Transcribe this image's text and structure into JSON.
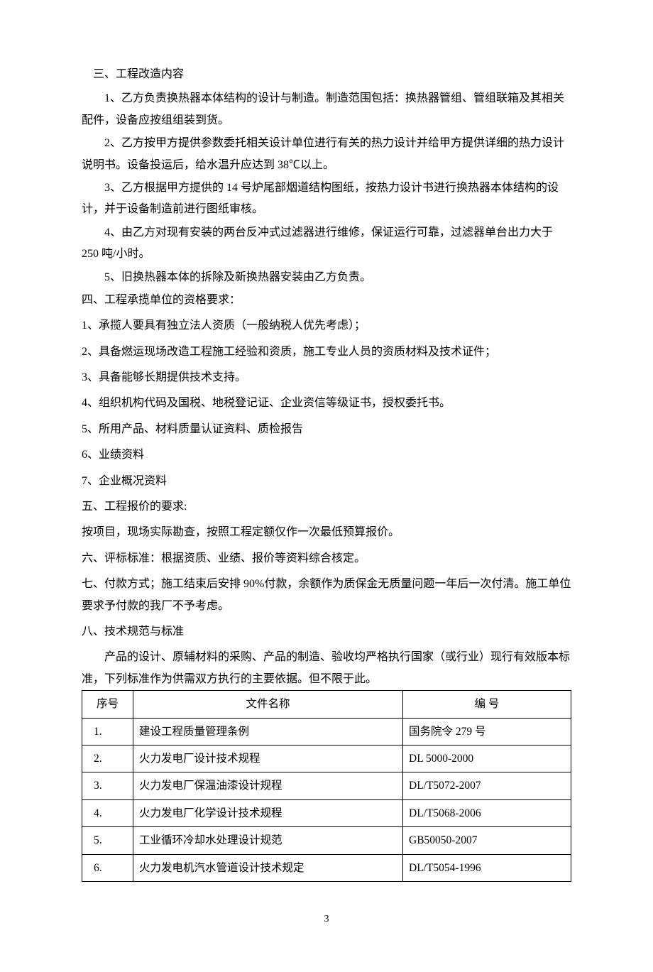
{
  "section3": {
    "heading": "三、工程改造内容",
    "items": [
      "1、乙方负责换热器本体结构的设计与制造。制造范围包括：换热器管组、管组联箱及其相关配件，设备应按组组装到货。",
      "2、乙方按甲方提供参数委托相关设计单位进行有关的热力设计并给甲方提供详细的热力设计说明书。设备投运后，给水温升应达到 38℃以上。",
      "3、乙方根据甲方提供的 14 号炉尾部烟道结构图纸，按热力设计书进行换热器本体结构的设计，并于设备制造前进行图纸审核。",
      "4、由乙方对现有安装的两台反冲式过滤器进行维修，保证运行可靠，过滤器单台出力大于 250 吨/小时。",
      "5、旧换热器本体的拆除及新换热器安装由乙方负责。"
    ]
  },
  "section4": {
    "heading": "四、工程承揽单位的资格要求：",
    "items": [
      "1、承揽人要具有独立法人资质（一般纳税人优先考虑）；",
      "2、具备燃运现场改造工程施工经验和资质，施工专业人员的资质材料及技术证件；",
      "3、具备能够长期提供技术支持。",
      "4、组织机构代码及国税、地税登记证、企业资信等级证书，授权委托书。",
      "5、所用产品、材料质量认证资料、质检报告",
      "6、业绩资料",
      "7、企业概况资料"
    ]
  },
  "section5": {
    "heading": "五、工程报价的要求:",
    "body": "按项目，现场实际勘查，按照工程定额仅作一次最低预算报价。"
  },
  "section6": {
    "text": "六、评标标准：根据资质、业绩、报价等资料综合核定。"
  },
  "section7": {
    "text": "七、付款方式；施工结束后安排 90%付款，余额作为质保金无质量问题一年后一次付清。施工单位要求予付款的我厂不予考虑。"
  },
  "section8": {
    "heading": "八、技术规范与标准",
    "intro": "产品的设计、原辅材料的采购、产品的制造、验收均严格执行国家（或行业）现行有效版本标准，下列标准作为供需双方执行的主要依据。但不限于此。",
    "table": {
      "headers": {
        "seq": "序号",
        "name": "文件名称",
        "code": "编  号"
      },
      "rows": [
        {
          "seq": "1.",
          "name": "建设工程质量管理条例",
          "code": "国务院令 279 号"
        },
        {
          "seq": "2.",
          "name": "火力发电厂设计技术规程",
          "code": "DL  5000-2000"
        },
        {
          "seq": "3.",
          "name": "火力发电厂保温油漆设计规程",
          "code": "DL/T5072-2007"
        },
        {
          "seq": "4.",
          "name": "火力发电厂化学设计技术规程",
          "code": "DL/T5068-2006"
        },
        {
          "seq": "5.",
          "name": "工业循环冷却水处理设计规范",
          "code": "GB50050-2007"
        },
        {
          "seq": "6.",
          "name": "火力发电机汽水管道设计技术规定",
          "code": "DL/T5054-1996"
        }
      ]
    }
  },
  "page_number": "3"
}
